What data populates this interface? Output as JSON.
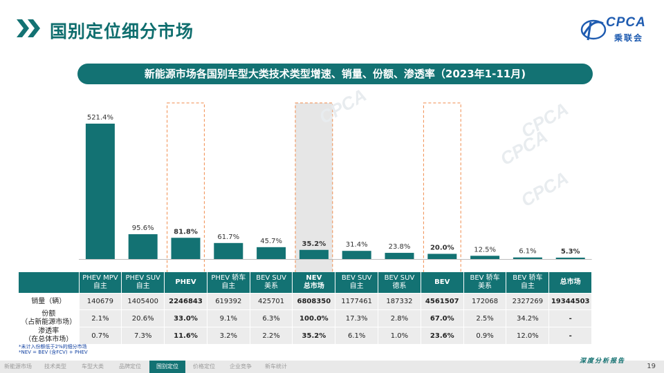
{
  "header": {
    "title": "国别定位细分市场",
    "logo_text": "CPCA",
    "logo_sub": "乘联会"
  },
  "subtitle": "新能源市场各国别车型大类技术类型增速、销量、份额、渗透率（2023年1-11月)",
  "chart_data": {
    "type": "bar",
    "categories": [
      [
        "PHEV MPV",
        "自主"
      ],
      [
        "PHEV SUV",
        "自主"
      ],
      [
        "PHEV"
      ],
      [
        "PHEV 轿车",
        "自主"
      ],
      [
        "BEV SUV",
        "美系"
      ],
      [
        "NEV",
        "总市场"
      ],
      [
        "BEV SUV",
        "自主"
      ],
      [
        "BEV SUV",
        "德系"
      ],
      [
        "BEV"
      ],
      [
        "BEV 轿车",
        "美系"
      ],
      [
        "BEV 轿车",
        "自主"
      ],
      [
        "总市场"
      ]
    ],
    "values": [
      521.4,
      95.6,
      81.8,
      61.7,
      45.7,
      35.2,
      31.4,
      23.8,
      20.0,
      12.5,
      6.1,
      5.3
    ],
    "value_labels": [
      "521.4%",
      "95.6%",
      "81.8%",
      "61.7%",
      "45.7%",
      "35.2%",
      "31.4%",
      "23.8%",
      "20.0%",
      "12.5%",
      "6.1%",
      "5.3%"
    ],
    "bold": [
      false,
      false,
      true,
      false,
      false,
      true,
      false,
      false,
      true,
      false,
      false,
      true
    ],
    "highlight": [
      false,
      false,
      "dashed",
      false,
      false,
      "shaded",
      false,
      false,
      "dashed",
      false,
      false,
      false
    ],
    "ylim": [
      0,
      521.4
    ],
    "bar_color": "#137273",
    "highlight_border_color": "#f08a4b",
    "shade_color": "#e6e6e6",
    "rows": [
      {
        "label": [
          "销量（辆）"
        ],
        "values": [
          "140679",
          "1405400",
          "2246843",
          "619392",
          "425701",
          "6808350",
          "1177461",
          "187332",
          "4561507",
          "172068",
          "2327269",
          "19344503"
        ]
      },
      {
        "label": [
          "份额",
          "（占新能源市场）"
        ],
        "values": [
          "2.1%",
          "20.6%",
          "33.0%",
          "9.1%",
          "6.3%",
          "100.0%",
          "17.3%",
          "2.8%",
          "67.0%",
          "2.5%",
          "34.2%",
          "-"
        ]
      },
      {
        "label": [
          "渗透率",
          "（在总体市场）"
        ],
        "values": [
          "0.7%",
          "7.3%",
          "11.6%",
          "3.2%",
          "2.2%",
          "35.2%",
          "6.1%",
          "1.0%",
          "23.6%",
          "0.9%",
          "12.0%",
          "-"
        ]
      }
    ]
  },
  "notes": [
    "*未计入份额低于2%的细分市场",
    "*NEV = BEV (含FCV) + PHEV"
  ],
  "footer": {
    "nav": [
      "新能源市场",
      "技术类型",
      "车型大类",
      "品牌定位",
      "国别定位",
      "价格定位",
      "企业竞争",
      "新车统计"
    ],
    "active_index": 4,
    "right_text": "深度分析报告",
    "page_number": "19"
  },
  "colors": {
    "teal": "#137273",
    "orange_dash": "#f08a4b"
  }
}
